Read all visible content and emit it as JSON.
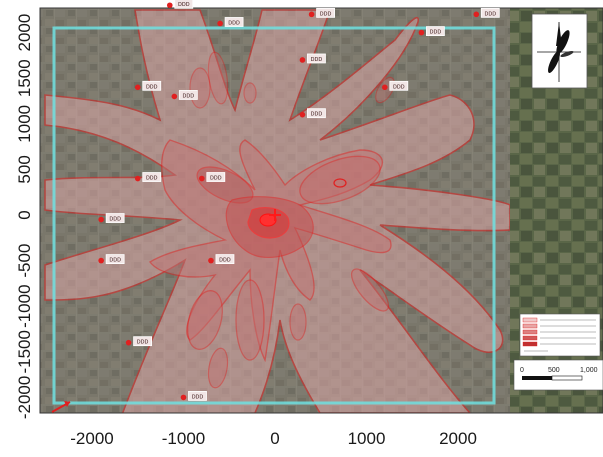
{
  "map": {
    "x_ticks": [
      "-2000",
      "-1000",
      "0",
      "1000",
      "2000"
    ],
    "y_ticks": [
      "2000",
      "1500",
      "1000",
      "500",
      "0",
      "-500",
      "-1000",
      "-1500",
      "-2000"
    ],
    "colors": {
      "contour": "#e02020",
      "plume_fill": "#d87070",
      "hotspot": "#ff3030",
      "grid_boundary": "#6fe0e0",
      "satellite_base": "#6d6e62"
    },
    "source_position": [
      0,
      0
    ],
    "receptor_sites": [
      {
        "x": -1150,
        "y": 2300,
        "label": "ᴅᴅᴅ"
      },
      {
        "x": -600,
        "y": 2100,
        "label": "ᴅᴅᴅ"
      },
      {
        "x": 400,
        "y": 2200,
        "label": "ᴅᴅᴅ"
      },
      {
        "x": 1600,
        "y": 2000,
        "label": "ᴅᴅᴅ"
      },
      {
        "x": 2200,
        "y": 2200,
        "label": "ᴅᴅᴅ"
      },
      {
        "x": 300,
        "y": 1700,
        "label": "ᴅᴅᴅ"
      },
      {
        "x": 1200,
        "y": 1400,
        "label": "ᴅᴅᴅ"
      },
      {
        "x": -1500,
        "y": 1400,
        "label": "ᴅᴅᴅ"
      },
      {
        "x": -1100,
        "y": 1300,
        "label": "ᴅᴅᴅ"
      },
      {
        "x": 300,
        "y": 1100,
        "label": "ᴅᴅᴅ"
      },
      {
        "x": -1500,
        "y": 400,
        "label": "ᴅᴅᴅ"
      },
      {
        "x": -800,
        "y": 400,
        "label": "ᴅᴅᴅ"
      },
      {
        "x": -1900,
        "y": -50,
        "label": "ᴅᴅᴅ"
      },
      {
        "x": -1900,
        "y": -500,
        "label": "ᴅᴅᴅ"
      },
      {
        "x": -700,
        "y": -500,
        "label": "ᴅᴅᴅ"
      },
      {
        "x": -1600,
        "y": -1400,
        "label": "ᴅᴅᴅ"
      },
      {
        "x": -1000,
        "y": -2000,
        "label": "ᴅᴅᴅ"
      }
    ]
  },
  "scale_bar": {
    "labels": [
      "0",
      "500",
      "1,000"
    ]
  }
}
